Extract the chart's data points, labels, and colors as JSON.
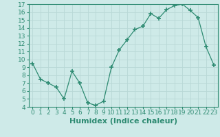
{
  "x": [
    0,
    1,
    2,
    3,
    4,
    5,
    6,
    7,
    8,
    9,
    10,
    11,
    12,
    13,
    14,
    15,
    16,
    17,
    18,
    19,
    20,
    21,
    22,
    23
  ],
  "y": [
    9.5,
    7.5,
    7.0,
    6.5,
    5.0,
    8.5,
    7.0,
    4.5,
    4.2,
    4.7,
    9.0,
    11.2,
    12.5,
    13.8,
    14.2,
    15.8,
    15.2,
    16.3,
    16.8,
    17.0,
    16.2,
    15.3,
    11.6,
    9.3
  ],
  "line_color": "#2e8b72",
  "marker": "+",
  "marker_size": 4,
  "marker_lw": 1.2,
  "bg_color": "#ceeae8",
  "grid_color": "#b8d8d6",
  "xlabel": "Humidex (Indice chaleur)",
  "xlim": [
    -0.5,
    23.5
  ],
  "ylim": [
    4,
    17
  ],
  "yticks": [
    4,
    5,
    6,
    7,
    8,
    9,
    10,
    11,
    12,
    13,
    14,
    15,
    16,
    17
  ],
  "xticks": [
    0,
    1,
    2,
    3,
    4,
    5,
    6,
    7,
    8,
    9,
    10,
    11,
    12,
    13,
    14,
    15,
    16,
    17,
    18,
    19,
    20,
    21,
    22,
    23
  ],
  "tick_fontsize": 6.5,
  "xlabel_fontsize": 8
}
